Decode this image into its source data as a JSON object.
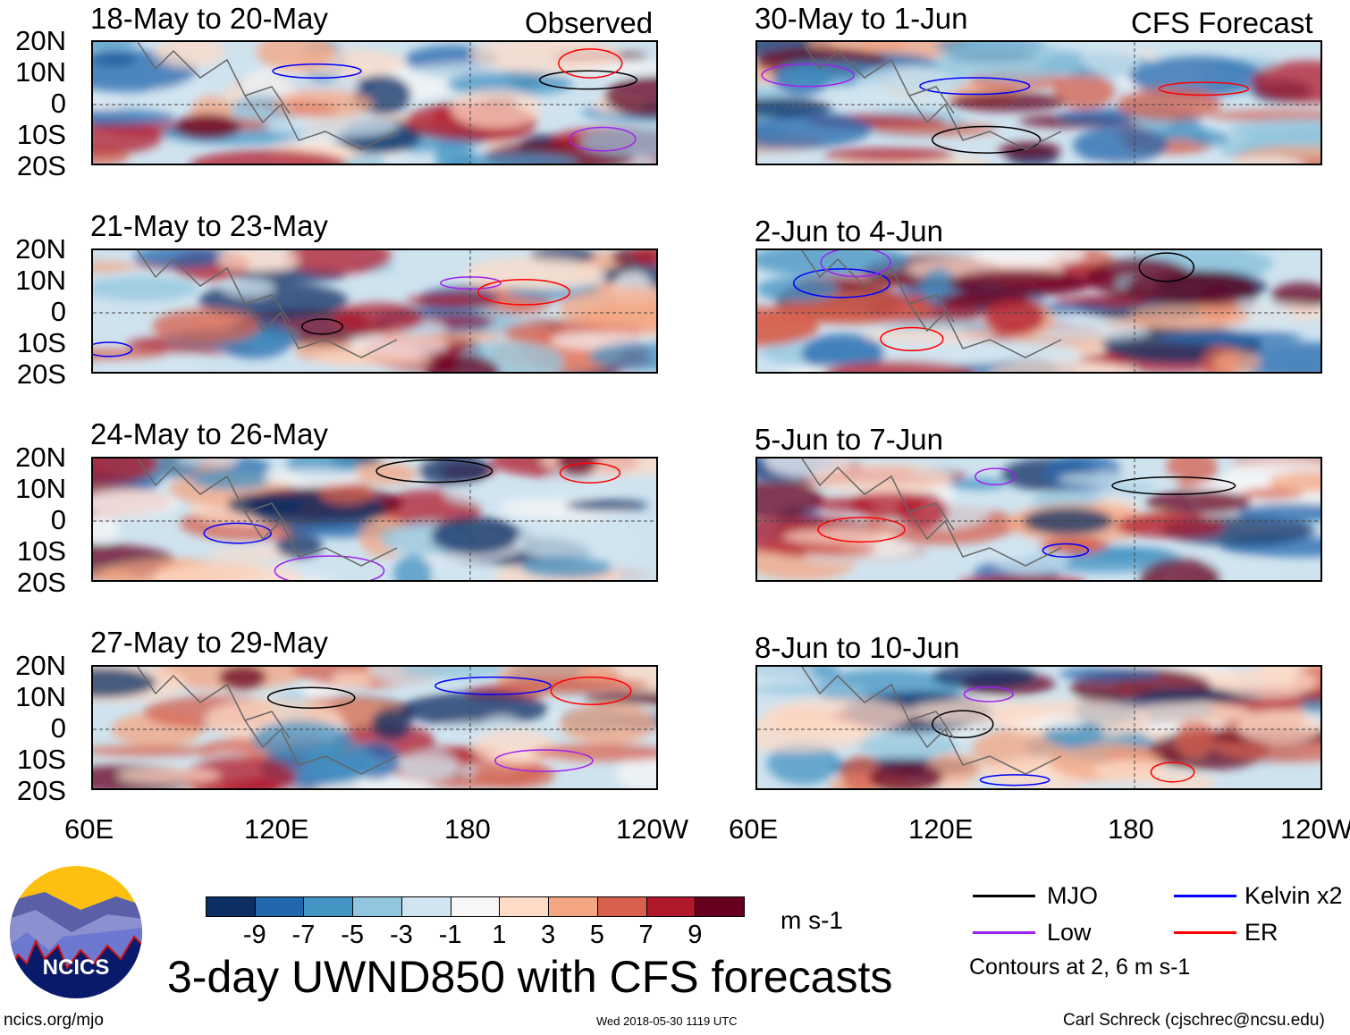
{
  "panels": {
    "left": [
      {
        "title": "18-May to 20-May",
        "label": "Observed"
      },
      {
        "title": "21-May to 23-May"
      },
      {
        "title": "24-May to 26-May"
      },
      {
        "title": "27-May to 29-May"
      }
    ],
    "right": [
      {
        "title": "30-May to 1-Jun",
        "label": "CFS Forecast"
      },
      {
        "title": "2-Jun to 4-Jun"
      },
      {
        "title": "5-Jun to 7-Jun"
      },
      {
        "title": "8-Jun to 10-Jun"
      }
    ]
  },
  "lat_ticks": [
    "20N",
    "10N",
    "0",
    "10S",
    "20S"
  ],
  "lon_ticks": [
    "60E",
    "120E",
    "180",
    "120W"
  ],
  "colorbar": {
    "colors": [
      "#0b2f63",
      "#2167ad",
      "#4393c3",
      "#92c5de",
      "#d1e5f0",
      "#f7f7f7",
      "#fddbc7",
      "#f4a582",
      "#d6604d",
      "#b2182b",
      "#67001f"
    ],
    "labels": [
      "-9",
      "-7",
      "-5",
      "-3",
      "-1",
      "1",
      "3",
      "5",
      "7",
      "9"
    ],
    "units": "m s-1"
  },
  "title": "3-day UWND850 with CFS forecasts",
  "legend": {
    "items": [
      {
        "label": "MJO",
        "color": "#000000"
      },
      {
        "label": "Kelvin x2",
        "color": "#0000ff"
      },
      {
        "label": "Low",
        "color": "#a020f0"
      },
      {
        "label": "ER",
        "color": "#ff0000"
      }
    ],
    "note": "Contours at 2, 6 m s-1"
  },
  "logo": {
    "text": "NCICS"
  },
  "footer": {
    "url": "ncics.org/mjo",
    "timestamp": "Wed 2018-05-30 1119 UTC",
    "credit": "Carl Schreck (cjschrec@ncsu.edu)"
  }
}
